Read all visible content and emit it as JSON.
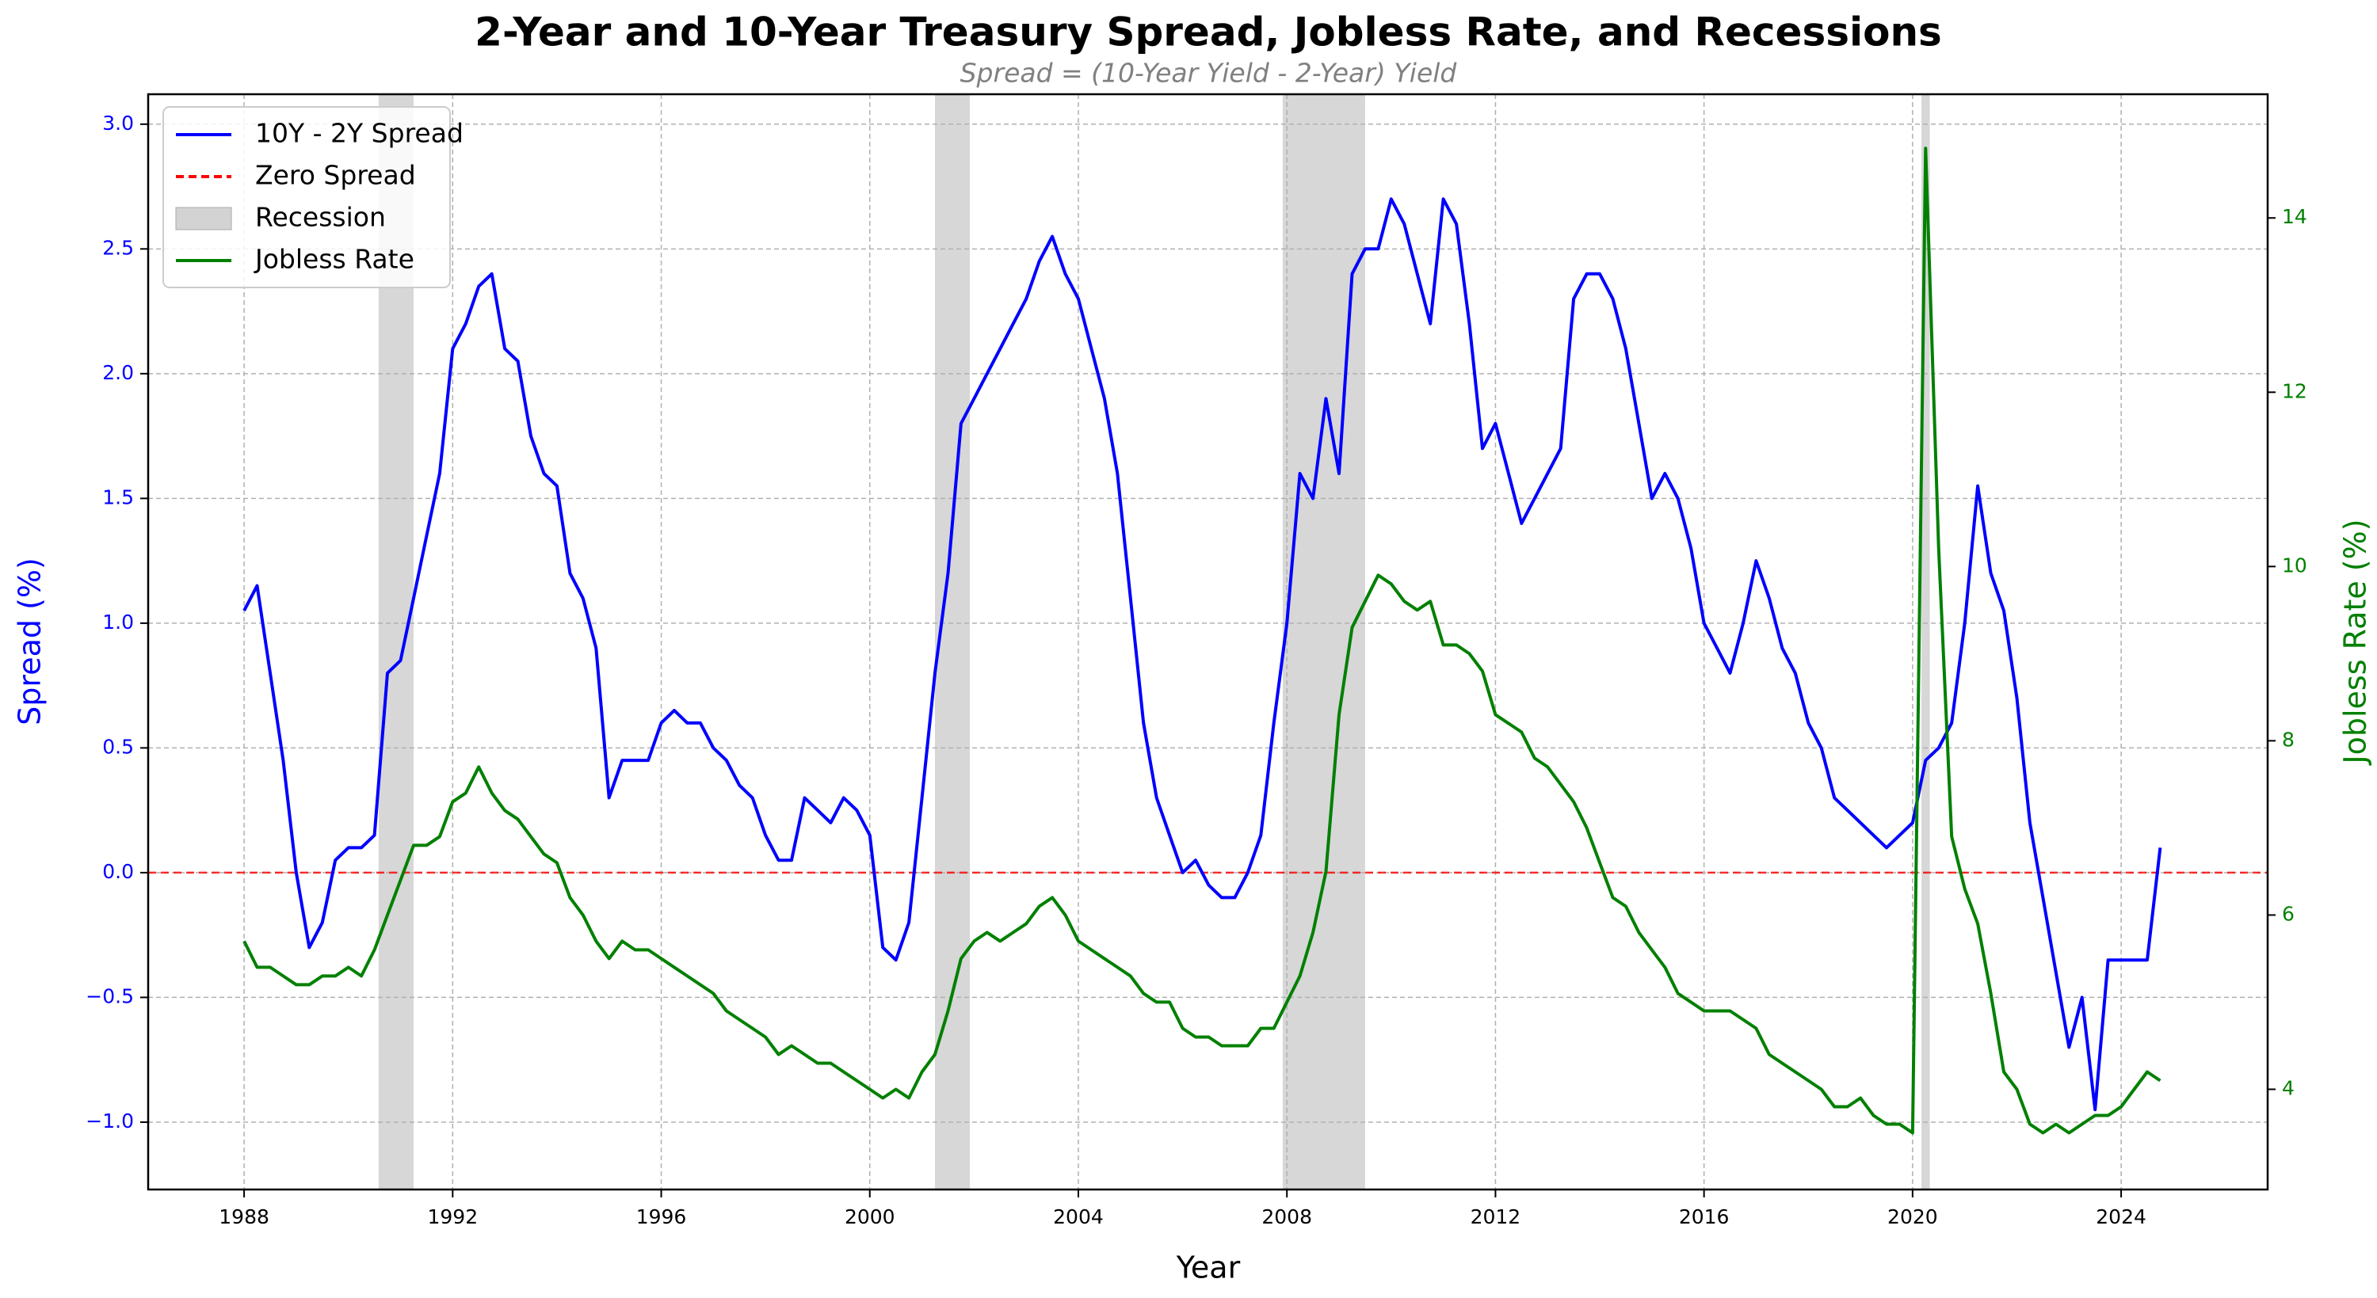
{
  "chart_data": {
    "type": "line",
    "title": "2-Year and 10-Year Treasury Spread, Jobless Rate, and Recessions",
    "subtitle": "Spread = (10-Year Yield - 2-Year) Yield",
    "x_label": "Year",
    "y_label": "Spread (%)",
    "y2_label": "Jobless Rate (%)",
    "xlim": [
      1986.16,
      2026.81
    ],
    "ylim": [
      -1.27,
      3.12
    ],
    "y2lim": [
      2.85,
      15.42
    ],
    "xticks": [
      1988,
      1992,
      1996,
      2000,
      2004,
      2008,
      2012,
      2016,
      2020,
      2024
    ],
    "yticks": [
      {
        "value": -1,
        "label": "−1.0"
      },
      {
        "value": -0.5,
        "label": "−0.5"
      },
      {
        "value": 0,
        "label": "0.0"
      },
      {
        "value": 0.5,
        "label": "0.5"
      },
      {
        "value": 1,
        "label": "1.0"
      },
      {
        "value": 1.5,
        "label": "1.5"
      },
      {
        "value": 2,
        "label": "2.0"
      },
      {
        "value": 2.5,
        "label": "2.5"
      },
      {
        "value": 3,
        "label": "3.0"
      }
    ],
    "y2ticks": [
      4,
      6,
      8,
      10,
      12,
      14
    ],
    "grid": true,
    "legend": "upper left",
    "x": [
      1988,
      1988.25,
      1988.5,
      1988.75,
      1989,
      1989.25,
      1989.5,
      1989.75,
      1990,
      1990.25,
      1990.5,
      1990.75,
      1991,
      1991.25,
      1991.5,
      1991.75,
      1992,
      1992.25,
      1992.5,
      1992.75,
      1993,
      1993.25,
      1993.5,
      1993.75,
      1994,
      1994.25,
      1994.5,
      1994.75,
      1995,
      1995.25,
      1995.5,
      1995.75,
      1996,
      1996.25,
      1996.5,
      1996.75,
      1997,
      1997.25,
      1997.5,
      1997.75,
      1998,
      1998.25,
      1998.5,
      1998.75,
      1999,
      1999.25,
      1999.5,
      1999.75,
      2000,
      2000.25,
      2000.5,
      2000.75,
      2001,
      2001.25,
      2001.5,
      2001.75,
      2002,
      2002.25,
      2002.5,
      2002.75,
      2003,
      2003.25,
      2003.5,
      2003.75,
      2004,
      2004.25,
      2004.5,
      2004.75,
      2005,
      2005.25,
      2005.5,
      2005.75,
      2006,
      2006.25,
      2006.5,
      2006.75,
      2007,
      2007.25,
      2007.5,
      2007.75,
      2008,
      2008.25,
      2008.5,
      2008.75,
      2009,
      2009.25,
      2009.5,
      2009.75,
      2010,
      2010.25,
      2010.5,
      2010.75,
      2011,
      2011.25,
      2011.5,
      2011.75,
      2012,
      2012.25,
      2012.5,
      2012.75,
      2013,
      2013.25,
      2013.5,
      2013.75,
      2014,
      2014.25,
      2014.5,
      2014.75,
      2015,
      2015.25,
      2015.5,
      2015.75,
      2016,
      2016.25,
      2016.5,
      2016.75,
      2017,
      2017.25,
      2017.5,
      2017.75,
      2018,
      2018.25,
      2018.5,
      2018.75,
      2019,
      2019.25,
      2019.5,
      2019.75,
      2020,
      2020.25,
      2020.5,
      2020.75,
      2021,
      2021.25,
      2021.5,
      2021.75,
      2022,
      2022.25,
      2022.5,
      2022.75,
      2023,
      2023.25,
      2023.5,
      2023.75,
      2024,
      2024.25,
      2024.5,
      2024.75
    ],
    "series": [
      {
        "name": "10Y - 2Y Spread",
        "color": "#0000ff",
        "values": [
          1.05,
          1.15,
          0.8,
          0.45,
          0.0,
          -0.3,
          -0.2,
          0.05,
          0.1,
          0.1,
          0.15,
          0.8,
          0.85,
          1.1,
          1.35,
          1.6,
          2.1,
          2.2,
          2.35,
          2.4,
          2.1,
          2.05,
          1.75,
          1.6,
          1.55,
          1.2,
          1.1,
          0.9,
          0.3,
          0.45,
          0.45,
          0.45,
          0.6,
          0.65,
          0.6,
          0.6,
          0.5,
          0.45,
          0.35,
          0.3,
          0.15,
          0.05,
          0.05,
          0.3,
          0.25,
          0.2,
          0.3,
          0.25,
          0.15,
          -0.3,
          -0.35,
          -0.2,
          0.3,
          0.8,
          1.2,
          1.8,
          1.9,
          2.0,
          2.1,
          2.2,
          2.3,
          2.45,
          2.55,
          2.4,
          2.3,
          2.1,
          1.9,
          1.6,
          1.1,
          0.6,
          0.3,
          0.15,
          0.0,
          0.05,
          -0.05,
          -0.1,
          -0.1,
          0.0,
          0.15,
          0.6,
          1.0,
          1.6,
          1.5,
          1.9,
          1.6,
          2.4,
          2.5,
          2.5,
          2.7,
          2.6,
          2.4,
          2.2,
          2.7,
          2.6,
          2.2,
          1.7,
          1.8,
          1.6,
          1.4,
          1.5,
          1.6,
          1.7,
          2.3,
          2.4,
          2.4,
          2.3,
          2.1,
          1.8,
          1.5,
          1.6,
          1.5,
          1.3,
          1.0,
          0.9,
          0.8,
          1.0,
          1.25,
          1.1,
          0.9,
          0.8,
          0.6,
          0.5,
          0.3,
          0.25,
          0.2,
          0.15,
          0.1,
          0.15,
          0.2,
          0.45,
          0.5,
          0.6,
          1.0,
          1.55,
          1.2,
          1.05,
          0.7,
          0.2,
          -0.1,
          -0.4,
          -0.7,
          -0.5,
          -0.95,
          -0.35,
          -0.35,
          -0.35,
          -0.35,
          0.1
        ]
      },
      {
        "name": "Jobless Rate",
        "color": "#008000",
        "axis": "y2",
        "values": [
          5.7,
          5.4,
          5.4,
          5.3,
          5.2,
          5.2,
          5.3,
          5.3,
          5.4,
          5.3,
          5.6,
          6.0,
          6.4,
          6.8,
          6.8,
          6.9,
          7.3,
          7.4,
          7.7,
          7.4,
          7.2,
          7.1,
          6.9,
          6.7,
          6.6,
          6.2,
          6.0,
          5.7,
          5.5,
          5.7,
          5.6,
          5.6,
          5.5,
          5.4,
          5.3,
          5.2,
          5.1,
          4.9,
          4.8,
          4.7,
          4.6,
          4.4,
          4.5,
          4.4,
          4.3,
          4.3,
          4.2,
          4.1,
          4.0,
          3.9,
          4.0,
          3.9,
          4.2,
          4.4,
          4.9,
          5.5,
          5.7,
          5.8,
          5.7,
          5.8,
          5.9,
          6.1,
          6.2,
          6.0,
          5.7,
          5.6,
          5.5,
          5.4,
          5.3,
          5.1,
          5.0,
          5.0,
          4.7,
          4.6,
          4.6,
          4.5,
          4.5,
          4.5,
          4.7,
          4.7,
          5.0,
          5.3,
          5.8,
          6.5,
          8.3,
          9.3,
          9.6,
          9.9,
          9.8,
          9.6,
          9.5,
          9.6,
          9.1,
          9.1,
          9.0,
          8.8,
          8.3,
          8.2,
          8.1,
          7.8,
          7.7,
          7.5,
          7.3,
          7.0,
          6.6,
          6.2,
          6.1,
          5.8,
          5.6,
          5.4,
          5.1,
          5.0,
          4.9,
          4.9,
          4.9,
          4.8,
          4.7,
          4.4,
          4.3,
          4.2,
          4.1,
          4.0,
          3.8,
          3.8,
          3.9,
          3.7,
          3.6,
          3.6,
          3.5,
          14.8,
          10.2,
          6.9,
          6.3,
          5.9,
          5.1,
          4.2,
          4.0,
          3.6,
          3.5,
          3.6,
          3.5,
          3.6,
          3.7,
          3.7,
          3.8,
          4.0,
          4.2,
          4.1
        ]
      }
    ],
    "zero_line": {
      "name": "Zero Spread",
      "value": 0,
      "color": "#ff0000"
    },
    "recessions": {
      "name": "Recession",
      "color": "#d3d3d3",
      "spans": [
        [
          1990.58,
          1991.25
        ],
        [
          2001.25,
          2001.92
        ],
        [
          2007.92,
          2009.5
        ],
        [
          2020.17,
          2020.33
        ]
      ]
    }
  }
}
